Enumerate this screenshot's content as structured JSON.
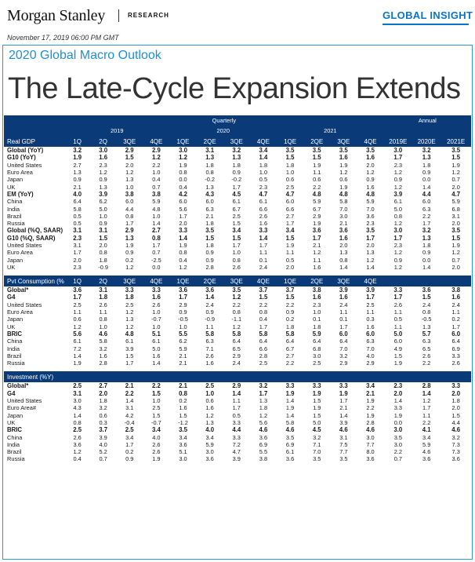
{
  "header": {
    "brand": "Morgan Stanley",
    "research": "RESEARCH",
    "insight": "GLOBAL INSIGHT"
  },
  "date": "November 17, 2019 06:00 PM GMT",
  "subtitle": "2020 Global Macro Outlook",
  "title": "The Late-Cycle Expansion Extends",
  "groups": {
    "quarterly": "Quarterly",
    "annual": "Annual",
    "y2019": "2019",
    "y2020": "2020",
    "y2021": "2021"
  },
  "cols": [
    "1Q",
    "2Q",
    "3QE",
    "4QE",
    "1QE",
    "2QE",
    "3QE",
    "4QE",
    "1QE",
    "2QE",
    "3QE",
    "4QE",
    "2019E",
    "2020E",
    "2021E"
  ],
  "sections": [
    {
      "title": "Real GDP",
      "head": [
        "1Q",
        "2Q",
        "3QE",
        "4QE",
        "1QE",
        "2QE",
        "3QE",
        "4QE",
        "1QE",
        "2QE",
        "3QE",
        "4QE",
        "2019E",
        "2020E",
        "2021E"
      ],
      "rows": [
        {
          "l": "Global (YoY)",
          "b": true,
          "v": [
            "3.2",
            "3.0",
            "2.9",
            "2.9",
            "3.0",
            "3.1",
            "3.2",
            "3.4",
            "3.5",
            "3.5",
            "3.5",
            "3.5",
            "3.0",
            "3.2",
            "3.5"
          ]
        },
        {
          "l": "G10 (YoY)",
          "b": true,
          "v": [
            "1.9",
            "1.6",
            "1.5",
            "1.2",
            "1.2",
            "1.3",
            "1.3",
            "1.4",
            "1.5",
            "1.5",
            "1.6",
            "1.6",
            "1.7",
            "1.3",
            "1.5"
          ]
        },
        {
          "l": "United States",
          "v": [
            "2.7",
            "2.3",
            "2.0",
            "2.2",
            "1.9",
            "1.8",
            "1.8",
            "1.8",
            "1.8",
            "1.9",
            "1.9",
            "2.0",
            "2.3",
            "1.8",
            "1.9"
          ]
        },
        {
          "l": "Euro Area",
          "v": [
            "1.3",
            "1.2",
            "1.2",
            "1.0",
            "0.8",
            "0.8",
            "0.9",
            "1.0",
            "1.0",
            "1.1",
            "1.2",
            "1.2",
            "1.2",
            "0.9",
            "1.2"
          ]
        },
        {
          "l": "Japan",
          "v": [
            "0.9",
            "0.9",
            "1.3",
            "0.4",
            "0.0",
            "-0.2",
            "-0.2",
            "0.5",
            "0.6",
            "0.6",
            "0.6",
            "0.9",
            "0.9",
            "0.0",
            "0.7"
          ]
        },
        {
          "l": "UK",
          "v": [
            "2.1",
            "1.3",
            "1.0",
            "0.7",
            "0.4",
            "1.3",
            "1.7",
            "2.3",
            "2.5",
            "2.2",
            "1.9",
            "1.6",
            "1.2",
            "1.4",
            "2.0"
          ]
        },
        {
          "l": "EM (YoY)",
          "b": true,
          "v": [
            "4.0",
            "3.9",
            "3.8",
            "3.8",
            "4.2",
            "4.3",
            "4.5",
            "4.7",
            "4.7",
            "4.8",
            "4.8",
            "4.8",
            "3.9",
            "4.4",
            "4.7"
          ]
        },
        {
          "l": "China",
          "v": [
            "6.4",
            "6.2",
            "6.0",
            "5.9",
            "6.0",
            "6.0",
            "6.1",
            "6.1",
            "6.0",
            "5.9",
            "5.8",
            "5.9",
            "6.1",
            "6.0",
            "5.9"
          ]
        },
        {
          "l": "India",
          "v": [
            "5.8",
            "5.0",
            "4.4",
            "4.8",
            "5.6",
            "6.3",
            "6.7",
            "6.6",
            "6.6",
            "6.7",
            "7.0",
            "7.0",
            "5.0",
            "6.3",
            "6.8"
          ]
        },
        {
          "l": "Brazil",
          "v": [
            "0.5",
            "1.0",
            "0.8",
            "1.0",
            "1.7",
            "2.1",
            "2.5",
            "2.6",
            "2.7",
            "2.9",
            "3.0",
            "3.6",
            "0.8",
            "2.2",
            "3.1"
          ]
        },
        {
          "l": "Russia",
          "v": [
            "0.5",
            "0.9",
            "1.7",
            "1.4",
            "2.0",
            "1.8",
            "1.5",
            "1.6",
            "1.7",
            "1.9",
            "2.1",
            "2.3",
            "1.2",
            "1.7",
            "2.0"
          ]
        },
        {
          "l": "Global (%Q, SAAR)",
          "b": true,
          "v": [
            "3.1",
            "3.1",
            "2.9",
            "2.7",
            "3.3",
            "3.5",
            "3.4",
            "3.3",
            "3.4",
            "3.6",
            "3.6",
            "3.5",
            "3.0",
            "3.2",
            "3.5"
          ]
        },
        {
          "l": "G10 (%Q, SAAR)",
          "b": true,
          "v": [
            "2.3",
            "1.5",
            "1.3",
            "0.8",
            "1.4",
            "1.5",
            "1.5",
            "1.4",
            "1.5",
            "1.7",
            "1.6",
            "1.7",
            "1.7",
            "1.3",
            "1.5"
          ]
        },
        {
          "l": "United States",
          "v": [
            "3.1",
            "2.0",
            "1.9",
            "1.7",
            "1.9",
            "1.8",
            "1.7",
            "1.7",
            "1.9",
            "2.1",
            "2.0",
            "2.0",
            "2.3",
            "1.8",
            "1.9"
          ]
        },
        {
          "l": "Euro Area",
          "v": [
            "1.7",
            "0.8",
            "0.9",
            "0.7",
            "0.8",
            "0.9",
            "1.0",
            "1.1",
            "1.1",
            "1.2",
            "1.3",
            "1.3",
            "1.2",
            "0.9",
            "1.2"
          ]
        },
        {
          "l": "Japan",
          "v": [
            "2.0",
            "1.8",
            "0.2",
            "-2.5",
            "0.4",
            "0.9",
            "0.8",
            "0.1",
            "0.5",
            "1.1",
            "0.8",
            "1.2",
            "0.9",
            "0.0",
            "0.7"
          ]
        },
        {
          "l": "UK",
          "v": [
            "2.3",
            "-0.9",
            "1.2",
            "0.0",
            "1.2",
            "2.8",
            "2.6",
            "2.4",
            "2.0",
            "1.6",
            "1.4",
            "1.4",
            "1.2",
            "1.4",
            "2.0"
          ]
        }
      ]
    },
    {
      "title": "Pvt Consumption (%Y)",
      "head": [
        "1Q",
        "2Q",
        "3QE",
        "4QE",
        "1QE",
        "2QE",
        "3QE",
        "4QE",
        "1QE",
        "2QE",
        "3QE",
        "4QE",
        "",
        "",
        ""
      ],
      "rows": [
        {
          "l": "Global*",
          "b": true,
          "v": [
            "3.6",
            "3.1",
            "3.3",
            "3.3",
            "3.6",
            "3.6",
            "3.5",
            "3.7",
            "3.7",
            "3.8",
            "3.9",
            "3.9",
            "3.3",
            "3.6",
            "3.8"
          ]
        },
        {
          "l": "G4",
          "b": true,
          "v": [
            "1.7",
            "1.8",
            "1.8",
            "1.6",
            "1.7",
            "1.4",
            "1.2",
            "1.5",
            "1.5",
            "1.6",
            "1.6",
            "1.7",
            "1.7",
            "1.5",
            "1.6"
          ]
        },
        {
          "l": "United States",
          "v": [
            "2.5",
            "2.6",
            "2.5",
            "2.6",
            "2.9",
            "2.4",
            "2.2",
            "2.2",
            "2.2",
            "2.3",
            "2.4",
            "2.5",
            "2.6",
            "2.4",
            "2.4"
          ]
        },
        {
          "l": "Euro Area",
          "v": [
            "1.1",
            "1.1",
            "1.2",
            "1.0",
            "0.9",
            "0.9",
            "0.8",
            "0.8",
            "0.9",
            "1.0",
            "1.1",
            "1.1",
            "1.1",
            "0.8",
            "1.1"
          ]
        },
        {
          "l": "Japan",
          "v": [
            "0.6",
            "0.8",
            "1.3",
            "-0.7",
            "-0.5",
            "-0.9",
            "-1.1",
            "0.4",
            "0.2",
            "0.1",
            "0.1",
            "0.3",
            "0.5",
            "-0.5",
            "0.2"
          ]
        },
        {
          "l": "UK",
          "v": [
            "1.2",
            "1.0",
            "1.2",
            "1.0",
            "1.0",
            "1.1",
            "1.2",
            "1.7",
            "1.8",
            "1.8",
            "1.7",
            "1.6",
            "1.1",
            "1.3",
            "1.7"
          ]
        },
        {
          "l": "BRIC",
          "b": true,
          "v": [
            "5.6",
            "4.6",
            "4.8",
            "5.1",
            "5.5",
            "5.8",
            "5.8",
            "5.8",
            "5.8",
            "5.9",
            "6.0",
            "6.0",
            "5.0",
            "5.7",
            "6.0"
          ]
        },
        {
          "l": "China",
          "v": [
            "6.1",
            "5.8",
            "6.1",
            "6.1",
            "6.2",
            "6.3",
            "6.4",
            "6.4",
            "6.4",
            "6.4",
            "6.4",
            "6.3",
            "6.0",
            "6.3",
            "6.4"
          ]
        },
        {
          "l": "India",
          "v": [
            "7.2",
            "3.2",
            "3.9",
            "5.0",
            "5.9",
            "7.1",
            "6.5",
            "6.6",
            "6.7",
            "6.8",
            "7.0",
            "7.0",
            "4.9",
            "6.5",
            "6.9"
          ]
        },
        {
          "l": "Brazil",
          "v": [
            "1.4",
            "1.6",
            "1.5",
            "1.6",
            "2.1",
            "2.6",
            "2.9",
            "2.8",
            "2.7",
            "3.0",
            "3.2",
            "4.0",
            "1.5",
            "2.6",
            "3.3"
          ]
        },
        {
          "l": "Russia",
          "v": [
            "1.9",
            "2.8",
            "1.7",
            "1.4",
            "2.1",
            "1.6",
            "2.4",
            "2.5",
            "2.2",
            "2.5",
            "2.9",
            "2.9",
            "1.9",
            "2.2",
            "2.6"
          ]
        }
      ]
    },
    {
      "title": "Investment (%Y)",
      "head": [
        "",
        "",
        "",
        "",
        "",
        "",
        "",
        "",
        "",
        "",
        "",
        "",
        "",
        "",
        ""
      ],
      "rows": [
        {
          "l": "Global*",
          "b": true,
          "v": [
            "2.5",
            "2.7",
            "2.1",
            "2.2",
            "2.1",
            "2.5",
            "2.9",
            "3.2",
            "3.3",
            "3.3",
            "3.3",
            "3.4",
            "2.3",
            "2.8",
            "3.3"
          ]
        },
        {
          "l": "G4",
          "b": true,
          "v": [
            "3.1",
            "2.0",
            "2.2",
            "1.5",
            "0.8",
            "1.0",
            "1.4",
            "1.7",
            "1.9",
            "1.9",
            "1.9",
            "2.1",
            "2.0",
            "1.4",
            "2.0"
          ]
        },
        {
          "l": "United States",
          "v": [
            "3.0",
            "1.8",
            "1.4",
            "1.0",
            "0.2",
            "0.6",
            "1.1",
            "1.3",
            "1.4",
            "1.5",
            "1.7",
            "1.9",
            "1.4",
            "1.2",
            "1.8"
          ]
        },
        {
          "l": "Euro Area#",
          "v": [
            "4.3",
            "3.2",
            "3.1",
            "2.5",
            "1.6",
            "1.6",
            "1.7",
            "1.8",
            "1.9",
            "1.9",
            "2.1",
            "2.2",
            "3.3",
            "1.7",
            "2.0"
          ]
        },
        {
          "l": "Japan",
          "v": [
            "1.4",
            "0.6",
            "4.2",
            "1.5",
            "1.5",
            "1.2",
            "0.5",
            "1.2",
            "1.4",
            "1.5",
            "1.4",
            "1.9",
            "1.9",
            "1.1",
            "1.5"
          ]
        },
        {
          "l": "UK",
          "v": [
            "0.8",
            "0.3",
            "-0.4",
            "-0.7",
            "-1.2",
            "1.3",
            "3.3",
            "5.6",
            "5.8",
            "5.0",
            "3.9",
            "2.8",
            "0.0",
            "2.2",
            "4.4"
          ]
        },
        {
          "l": "BRIC",
          "b": true,
          "v": [
            "2.5",
            "3.7",
            "2.5",
            "3.4",
            "3.5",
            "4.0",
            "4.4",
            "4.6",
            "4.6",
            "4.5",
            "4.6",
            "4.6",
            "3.0",
            "4.1",
            "4.6"
          ]
        },
        {
          "l": "China",
          "v": [
            "2.6",
            "3.9",
            "3.4",
            "4.0",
            "3.4",
            "3.4",
            "3.3",
            "3.6",
            "3.5",
            "3.2",
            "3.1",
            "3.0",
            "3.5",
            "3.4",
            "3.2"
          ]
        },
        {
          "l": "India",
          "v": [
            "3.6",
            "4.0",
            "1.7",
            "2.6",
            "3.6",
            "5.9",
            "7.2",
            "6.9",
            "6.9",
            "7.1",
            "7.5",
            "7.7",
            "3.0",
            "5.9",
            "7.3"
          ]
        },
        {
          "l": "Brazil",
          "v": [
            "1.2",
            "5.2",
            "0.2",
            "2.6",
            "5.1",
            "3.0",
            "4.7",
            "5.5",
            "6.1",
            "7.0",
            "7.7",
            "8.0",
            "2.2",
            "4.6",
            "7.3"
          ]
        },
        {
          "l": "Russia",
          "v": [
            "0.4",
            "0.7",
            "0.9",
            "1.9",
            "3.0",
            "3.6",
            "3.9",
            "3.8",
            "3.6",
            "3.5",
            "3.5",
            "3.6",
            "0.7",
            "3.6",
            "3.6"
          ]
        }
      ]
    }
  ]
}
